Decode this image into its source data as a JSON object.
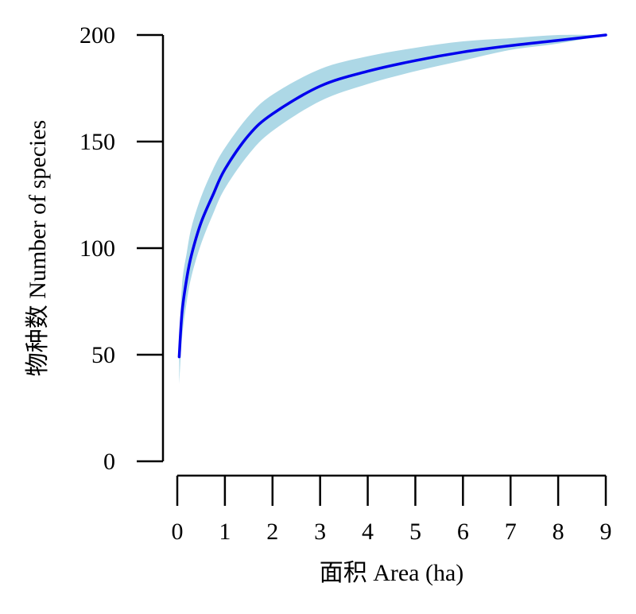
{
  "chart_data": {
    "type": "line",
    "xlabel": "面积 Area (ha)",
    "ylabel": "物种数 Number of species",
    "xlim": [
      0,
      9
    ],
    "ylim": [
      0,
      200
    ],
    "xticks": [
      "0",
      "1",
      "2",
      "3",
      "4",
      "5",
      "6",
      "7",
      "8",
      "9"
    ],
    "yticks": [
      "0",
      "50",
      "100",
      "150",
      "200"
    ],
    "grid": false,
    "colors": {
      "line": "#0000ee",
      "band": "#add8e6"
    },
    "series": [
      {
        "type": "line",
        "x": [
          0.04,
          0.1,
          0.2,
          0.3,
          0.5,
          0.75,
          1,
          1.5,
          2,
          3,
          4,
          5,
          6,
          7,
          8,
          9
        ],
        "y": [
          49,
          70,
          86,
          97,
          112,
          125,
          137,
          153,
          163,
          176,
          183,
          188,
          192,
          195,
          197.5,
          200
        ]
      },
      {
        "type": "area_band",
        "x": [
          0.04,
          0.1,
          0.2,
          0.3,
          0.5,
          0.75,
          1,
          1.5,
          2,
          3,
          4,
          5,
          6,
          7,
          8,
          9
        ],
        "lower": [
          36,
          58,
          75,
          87,
          102,
          116,
          128,
          144,
          155,
          169,
          177,
          183,
          188,
          193,
          196,
          200
        ],
        "upper": [
          54,
          83,
          98,
          110,
          124,
          137,
          147,
          162,
          172,
          184,
          190,
          194,
          197,
          198.5,
          200,
          200
        ]
      }
    ]
  }
}
